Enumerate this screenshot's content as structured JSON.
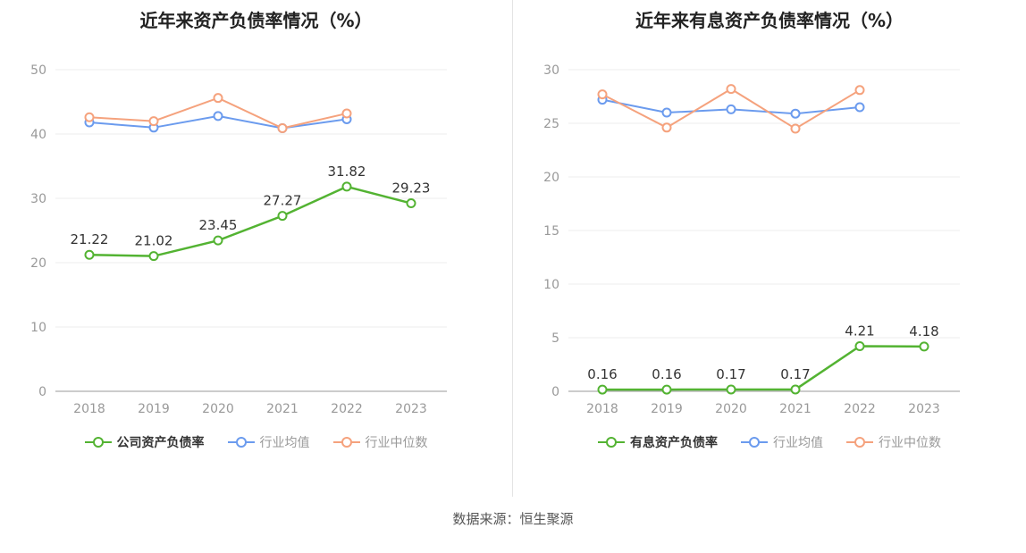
{
  "page": {
    "source_text": "数据来源：恒生聚源"
  },
  "colors": {
    "company_line": "#53b332",
    "industry_avg_line": "#6b9bee",
    "industry_median_line": "#f5a27d",
    "title_text": "#222222",
    "axis_label": "#999999",
    "grid_line": "#ececec",
    "axis_line": "#9a9a9a",
    "data_label": "#333333"
  },
  "chart_data": [
    {
      "type": "line",
      "title": "近年来资产负债率情况（%）",
      "categories": [
        "2018",
        "2019",
        "2020",
        "2021",
        "2022",
        "2023"
      ],
      "ylim": [
        0,
        50
      ],
      "yticks": [
        0,
        10,
        20,
        30,
        40,
        50
      ],
      "grid": true,
      "legend_position": "bottom",
      "series": [
        {
          "name": "公司资产负债率",
          "color": "#53b332",
          "values": [
            21.22,
            21.02,
            23.45,
            27.27,
            31.82,
            29.23
          ],
          "labels": [
            "21.22",
            "21.02",
            "23.45",
            "27.27",
            "31.82",
            "29.23"
          ]
        },
        {
          "name": "行业均值",
          "color": "#6b9bee",
          "values": [
            41.8,
            41.0,
            42.8,
            40.9,
            42.3,
            null
          ]
        },
        {
          "name": "行业中位数",
          "color": "#f5a27d",
          "values": [
            42.6,
            42.0,
            45.6,
            40.9,
            43.2,
            null
          ]
        }
      ]
    },
    {
      "type": "line",
      "title": "近年来有息资产负债率情况（%）",
      "categories": [
        "2018",
        "2019",
        "2020",
        "2021",
        "2022",
        "2023"
      ],
      "ylim": [
        0,
        30
      ],
      "yticks": [
        0,
        5,
        10,
        15,
        20,
        25,
        30
      ],
      "grid": true,
      "legend_position": "bottom",
      "series": [
        {
          "name": "有息资产负债率",
          "color": "#53b332",
          "values": [
            0.16,
            0.16,
            0.17,
            0.17,
            4.21,
            4.18
          ],
          "labels": [
            "0.16",
            "0.16",
            "0.17",
            "0.17",
            "4.21",
            "4.18"
          ]
        },
        {
          "name": "行业均值",
          "color": "#6b9bee",
          "values": [
            27.2,
            26.0,
            26.3,
            25.9,
            26.5,
            null
          ]
        },
        {
          "name": "行业中位数",
          "color": "#f5a27d",
          "values": [
            27.7,
            24.6,
            28.2,
            24.5,
            28.1,
            null
          ]
        }
      ]
    }
  ]
}
